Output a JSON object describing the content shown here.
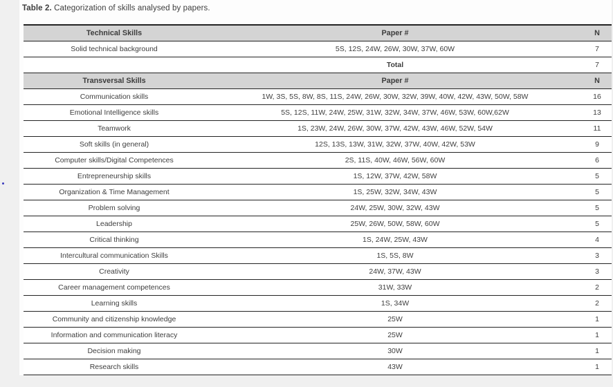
{
  "page": {
    "caption_label": "Table 2.",
    "caption_text": " Categorization of skills analysed by papers."
  },
  "sections": [
    {
      "header": {
        "skill": "Technical Skills",
        "papers": "Paper #",
        "n": "N"
      },
      "rows": [
        {
          "skill": "Solid technical background",
          "papers": "5S, 12S, 24W, 26W, 30W, 37W, 60W",
          "n": "7",
          "bold": false
        },
        {
          "skill": "",
          "papers": "Total",
          "n": "7",
          "bold": true
        }
      ]
    },
    {
      "header": {
        "skill": "Transversal Skills",
        "papers": "Paper #",
        "n": "N"
      },
      "rows": [
        {
          "skill": "Communication skills",
          "papers": "1W, 3S, 5S, 8W, 8S, 11S, 24W, 26W, 30W, 32W, 39W, 40W, 42W, 43W, 50W, 58W",
          "n": "16",
          "bold": false
        },
        {
          "skill": "Emotional Intelligence skills",
          "papers": "5S, 12S, 11W, 24W, 25W, 31W, 32W, 34W, 37W, 46W, 53W, 60W,62W",
          "n": "13",
          "bold": false
        },
        {
          "skill": "Teamwork",
          "papers": "1S, 23W, 24W, 26W, 30W, 37W, 42W, 43W, 46W, 52W, 54W",
          "n": "11",
          "bold": false
        },
        {
          "skill": "Soft skills (in general)",
          "papers": "12S, 13S, 13W, 31W, 32W, 37W, 40W, 42W, 53W",
          "n": "9",
          "bold": false
        },
        {
          "skill": "Computer skills/Digital Competences",
          "papers": "2S, 11S, 40W, 46W, 56W, 60W",
          "n": "6",
          "bold": false
        },
        {
          "skill": "Entrepreneurship skills",
          "papers": "1S, 12W, 37W, 42W, 58W",
          "n": "5",
          "bold": false
        },
        {
          "skill": "Organization & Time Management",
          "papers": "1S, 25W, 32W, 34W, 43W",
          "n": "5",
          "bold": false
        },
        {
          "skill": "Problem solving",
          "papers": "24W, 25W, 30W, 32W, 43W",
          "n": "5",
          "bold": false
        },
        {
          "skill": "Leadership",
          "papers": "25W, 26W, 50W, 58W, 60W",
          "n": "5",
          "bold": false
        },
        {
          "skill": "Critical thinking",
          "papers": "1S, 24W, 25W, 43W",
          "n": "4",
          "bold": false
        },
        {
          "skill": "Intercultural communication Skills",
          "papers": "1S, 5S, 8W",
          "n": "3",
          "bold": false
        },
        {
          "skill": "Creativity",
          "papers": "24W, 37W, 43W",
          "n": "3",
          "bold": false
        },
        {
          "skill": "Career management competences",
          "papers": "31W, 33W",
          "n": "2",
          "bold": false
        },
        {
          "skill": "Learning skills",
          "papers": "1S, 34W",
          "n": "2",
          "bold": false
        },
        {
          "skill": "Community and citizenship knowledge",
          "papers": "25W",
          "n": "1",
          "bold": false
        },
        {
          "skill": "Information and communication literacy",
          "papers": "25W",
          "n": "1",
          "bold": false
        },
        {
          "skill": "Decision making",
          "papers": "30W",
          "n": "1",
          "bold": false
        },
        {
          "skill": "Research skills",
          "papers": "43W",
          "n": "1",
          "bold": false
        }
      ]
    }
  ],
  "colors": {
    "page_bg": "#f0f0f0",
    "panel_bg": "#fdfdfd",
    "header_bg": "#d4d4d4",
    "row_bg": "#ffffff",
    "border": "#222222",
    "text": "#3d3d3d"
  }
}
